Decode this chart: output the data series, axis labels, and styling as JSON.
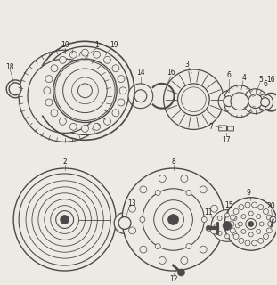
{
  "bg_color": "#ede9e3",
  "line_color": "#4a4a4a",
  "text_color": "#222222",
  "figsize": [
    3.11,
    3.2
  ],
  "dpi": 100
}
